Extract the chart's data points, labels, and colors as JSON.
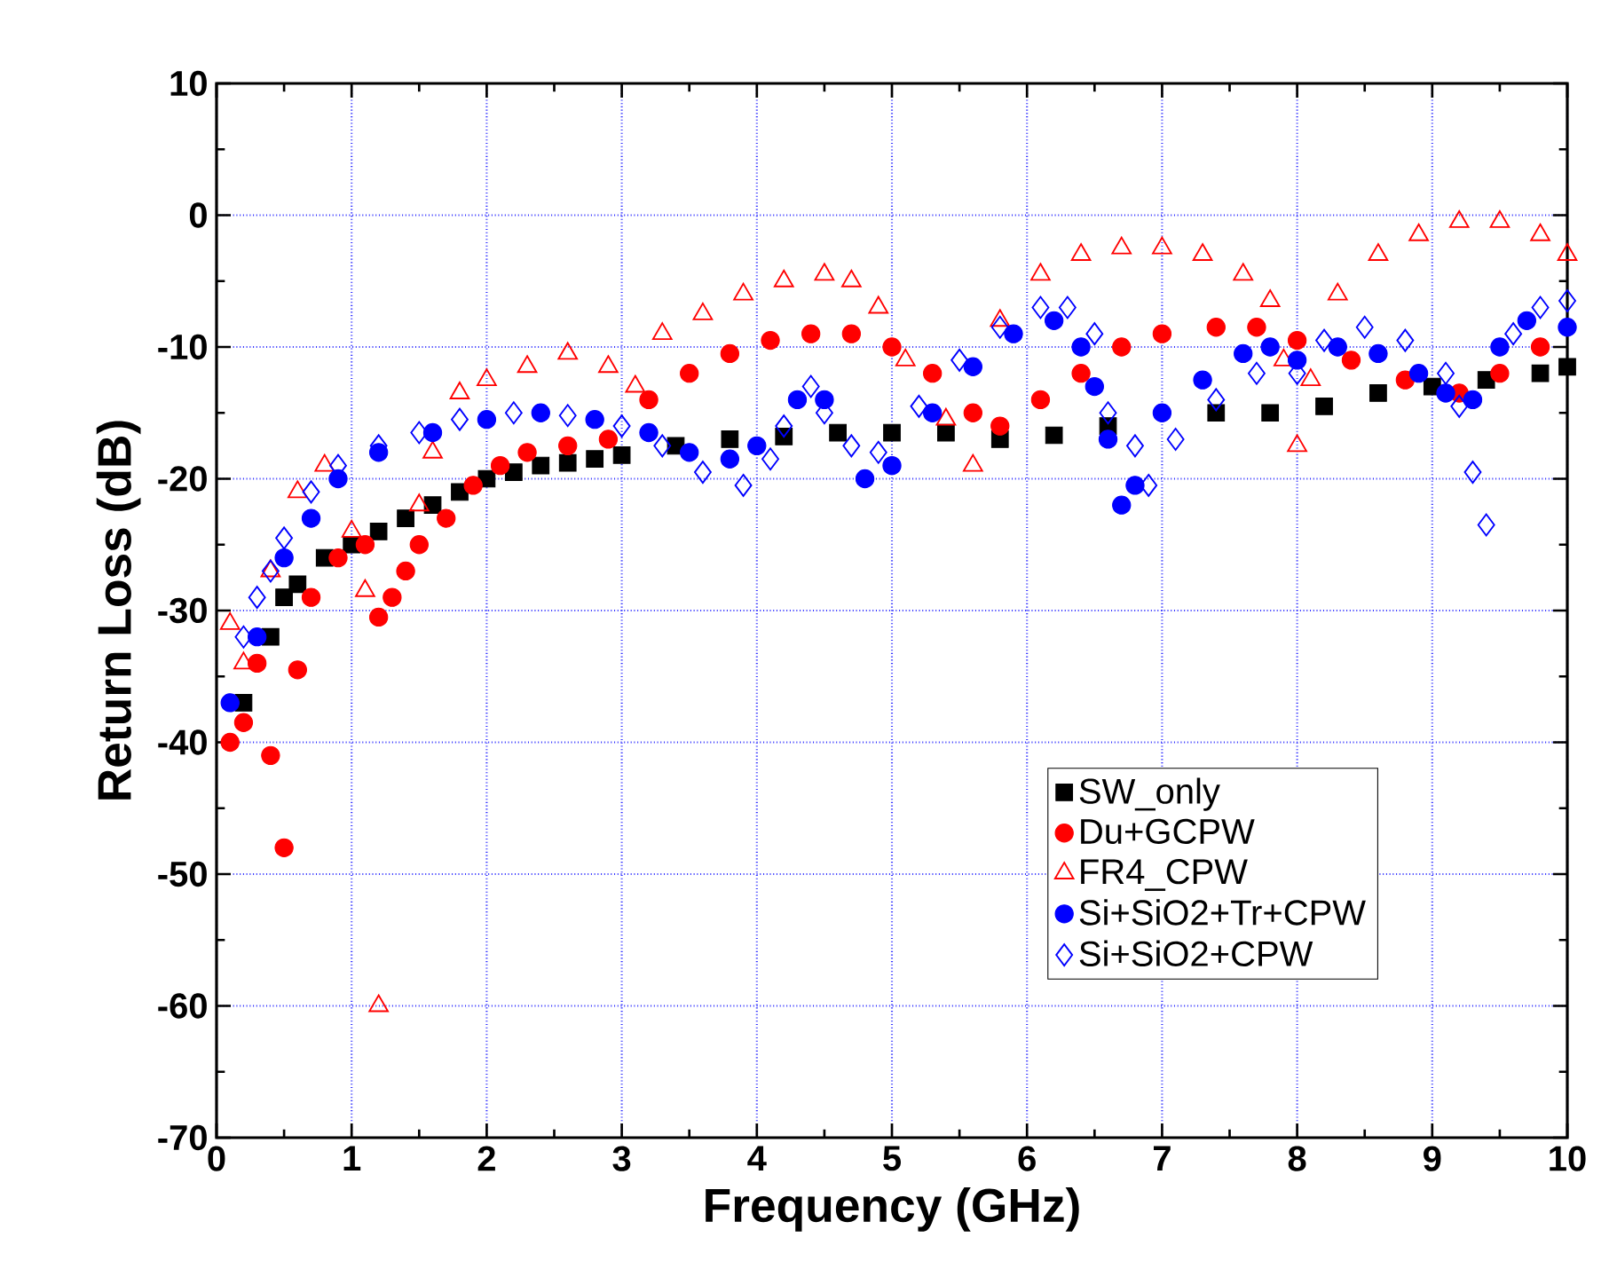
{
  "chart_data": {
    "type": "scatter",
    "xlabel": "Frequency (GHz)",
    "ylabel": "Return Loss (dB)",
    "xlim": [
      0,
      10
    ],
    "ylim": [
      -70,
      10
    ],
    "xticks": [
      0,
      1,
      2,
      3,
      4,
      5,
      6,
      7,
      8,
      9,
      10
    ],
    "yticks": [
      -70,
      -60,
      -50,
      -40,
      -30,
      -20,
      -10,
      0,
      10
    ],
    "grid": true,
    "legend": "bottom right",
    "series": [
      {
        "name": "SW_only",
        "color": "#000000",
        "marker": "square",
        "x": [
          0.2,
          0.4,
          0.5,
          0.6,
          0.8,
          1.0,
          1.2,
          1.4,
          1.6,
          1.8,
          2.0,
          2.2,
          2.4,
          2.6,
          2.8,
          3.0,
          3.4,
          3.8,
          4.2,
          4.6,
          5.0,
          5.4,
          5.8,
          6.2,
          6.6,
          7.4,
          7.8,
          8.2,
          8.6,
          9.0,
          9.4,
          9.8,
          10.0
        ],
        "values": [
          -37,
          -32,
          -29,
          -28,
          -26,
          -25,
          -24,
          -23,
          -22,
          -21,
          -20,
          -19.5,
          -19,
          -18.8,
          -18.5,
          -18.2,
          -17.5,
          -17,
          -16.8,
          -16.5,
          -16.5,
          -16.5,
          -17,
          -16.7,
          -16,
          -15,
          -15,
          -14.5,
          -13.5,
          -13,
          -12.5,
          -12,
          -11.5
        ]
      },
      {
        "name": "Du+GCPW",
        "color": "#ff0000",
        "marker": "circle",
        "x": [
          0.1,
          0.2,
          0.3,
          0.4,
          0.5,
          0.6,
          0.7,
          0.9,
          1.1,
          1.2,
          1.3,
          1.4,
          1.5,
          1.7,
          1.9,
          2.1,
          2.3,
          2.6,
          2.9,
          3.2,
          3.5,
          3.8,
          4.1,
          4.4,
          4.7,
          5.0,
          5.3,
          5.6,
          5.8,
          6.1,
          6.4,
          6.7,
          7.0,
          7.4,
          7.7,
          8.0,
          8.4,
          8.8,
          9.2,
          9.5,
          9.8
        ],
        "values": [
          -40,
          -38.5,
          -34,
          -41,
          -48,
          -34.5,
          -29,
          -26,
          -25,
          -30.5,
          -29,
          -27,
          -25,
          -23,
          -20.5,
          -19,
          -18,
          -17.5,
          -17,
          -14,
          -12,
          -10.5,
          -9.5,
          -9,
          -9,
          -10,
          -12,
          -15,
          -16,
          -14,
          -12,
          -10,
          -9,
          -8.5,
          -8.5,
          -9.5,
          -11,
          -12.5,
          -13.5,
          -12,
          -10
        ]
      },
      {
        "name": "FR4_CPW",
        "color": "#ff0000",
        "marker": "triangle",
        "x": [
          0.1,
          0.2,
          0.4,
          0.6,
          0.8,
          1.0,
          1.1,
          1.2,
          1.5,
          1.6,
          1.8,
          2.0,
          2.3,
          2.6,
          2.9,
          3.1,
          3.3,
          3.6,
          3.9,
          4.2,
          4.5,
          4.7,
          4.9,
          5.1,
          5.4,
          5.6,
          5.8,
          6.1,
          6.4,
          6.7,
          7.0,
          7.3,
          7.6,
          7.8,
          7.9,
          8.0,
          8.1,
          8.3,
          8.6,
          8.9,
          9.2,
          9.5,
          9.8,
          10.0
        ],
        "values": [
          -31,
          -34,
          -27,
          -21,
          -19,
          -24,
          -28.5,
          -60,
          -22,
          -18,
          -13.5,
          -12.5,
          -11.5,
          -10.5,
          -11.5,
          -13,
          -9,
          -7.5,
          -6,
          -5,
          -4.5,
          -5,
          -7,
          -11,
          -15.5,
          -19,
          -8,
          -4.5,
          -3,
          -2.5,
          -2.5,
          -3,
          -4.5,
          -6.5,
          -11,
          -17.5,
          -12.5,
          -6,
          -3,
          -1.5,
          -0.5,
          -0.5,
          -1.5,
          -3
        ]
      },
      {
        "name": "Si+SiO2+Tr+CPW",
        "color": "#0000ff",
        "marker": "circle",
        "x": [
          0.1,
          0.3,
          0.5,
          0.7,
          0.9,
          1.2,
          1.6,
          2.0,
          2.4,
          2.8,
          3.2,
          3.5,
          3.8,
          4.0,
          4.3,
          4.5,
          4.8,
          5.0,
          5.3,
          5.6,
          5.9,
          6.2,
          6.4,
          6.5,
          6.6,
          6.7,
          6.8,
          7.0,
          7.3,
          7.6,
          7.8,
          8.0,
          8.3,
          8.6,
          8.9,
          9.1,
          9.3,
          9.5,
          9.7,
          10.0
        ],
        "values": [
          -37,
          -32,
          -26,
          -23,
          -20,
          -18,
          -16.5,
          -15.5,
          -15,
          -15.5,
          -16.5,
          -18,
          -18.5,
          -17.5,
          -14,
          -14,
          -20,
          -19,
          -15,
          -11.5,
          -9,
          -8,
          -10,
          -13,
          -17,
          -22,
          -20.5,
          -15,
          -12.5,
          -10.5,
          -10,
          -11,
          -10,
          -10.5,
          -12,
          -13.5,
          -14,
          -10,
          -8,
          -8.5
        ]
      },
      {
        "name": "Si+SiO2+CPW",
        "color": "#0000ff",
        "marker": "diamond",
        "x": [
          0.2,
          0.3,
          0.4,
          0.5,
          0.7,
          0.9,
          1.2,
          1.5,
          1.8,
          2.2,
          2.6,
          3.0,
          3.3,
          3.6,
          3.9,
          4.1,
          4.2,
          4.4,
          4.5,
          4.7,
          4.9,
          5.2,
          5.5,
          5.8,
          6.1,
          6.3,
          6.5,
          6.6,
          6.8,
          6.9,
          7.1,
          7.4,
          7.7,
          8.0,
          8.2,
          8.5,
          8.8,
          9.1,
          9.2,
          9.3,
          9.4,
          9.6,
          9.8,
          10.0
        ],
        "values": [
          -32,
          -29,
          -27,
          -24.5,
          -21,
          -19,
          -17.5,
          -16.5,
          -15.5,
          -15,
          -15.2,
          -16,
          -17.5,
          -19.5,
          -20.5,
          -18.5,
          -16,
          -13,
          -15,
          -17.5,
          -18,
          -14.5,
          -11,
          -8.5,
          -7,
          -7,
          -9,
          -15,
          -17.5,
          -20.5,
          -17,
          -14,
          -12,
          -12,
          -9.5,
          -8.5,
          -9.5,
          -12,
          -14.5,
          -19.5,
          -23.5,
          -9,
          -7,
          -6.5
        ]
      }
    ]
  }
}
